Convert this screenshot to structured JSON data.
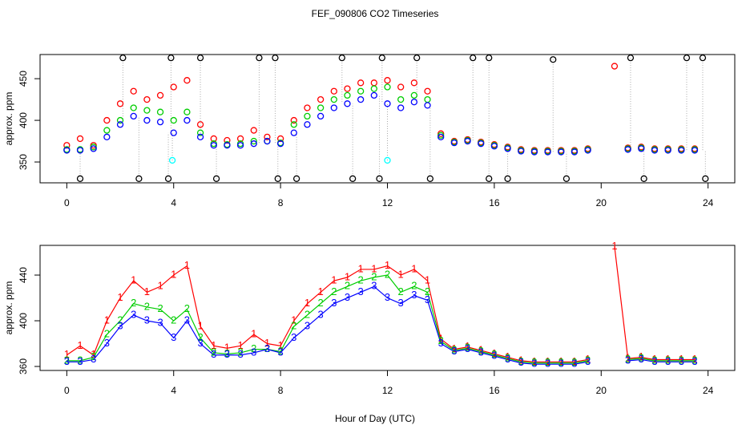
{
  "chart_data": [
    {
      "type": "scatter",
      "title": "FEF_090806  CO2 Timeseries",
      "ylabel": "approx. ppm",
      "x": [
        0,
        0.5,
        1,
        1.5,
        2,
        2.5,
        3,
        3.5,
        4,
        4.5,
        5,
        5.5,
        6,
        6.5,
        7,
        7.5,
        8,
        8.5,
        9,
        9.5,
        10,
        10.5,
        11,
        11.5,
        12,
        12.5,
        13,
        13.5,
        14,
        14.5,
        15,
        15.5,
        16,
        16.5,
        17,
        17.5,
        18,
        18.5,
        19,
        19.5,
        20,
        20.5,
        21,
        21.5,
        22,
        22.5,
        23,
        23.5
      ],
      "xlim": [
        -1,
        25
      ],
      "xticks": [
        0,
        4,
        8,
        12,
        16,
        20,
        24
      ],
      "ylim": [
        325,
        479
      ],
      "yticks": [
        350,
        400,
        450
      ],
      "series": [
        {
          "color": "#ff0000",
          "values": [
            370,
            378,
            370,
            400,
            420,
            435,
            425,
            430,
            440,
            448,
            395,
            378,
            376,
            378,
            388,
            380,
            378,
            400,
            415,
            425,
            435,
            438,
            445,
            445,
            448,
            440,
            445,
            435,
            384,
            375,
            377,
            374,
            371,
            368,
            365,
            364,
            364,
            364,
            364,
            366,
            null,
            465,
            367,
            368,
            366,
            366,
            366,
            366
          ]
        },
        {
          "color": "#00cd00",
          "values": [
            365,
            365,
            368,
            388,
            400,
            415,
            412,
            410,
            400,
            410,
            385,
            372,
            371,
            372,
            375,
            375,
            373,
            395,
            405,
            415,
            425,
            430,
            435,
            438,
            440,
            425,
            430,
            425,
            382,
            374,
            376,
            373,
            370,
            367,
            364,
            363,
            363,
            363,
            363,
            365,
            null,
            null,
            366,
            367,
            365,
            365,
            365,
            365
          ]
        },
        {
          "color": "#0000ff",
          "values": [
            364,
            364,
            366,
            380,
            395,
            405,
            400,
            398,
            385,
            400,
            380,
            370,
            370,
            370,
            372,
            375,
            372,
            385,
            395,
            405,
            415,
            420,
            425,
            430,
            420,
            415,
            422,
            418,
            380,
            373,
            375,
            372,
            369,
            366,
            363,
            362,
            362,
            362,
            362,
            364,
            null,
            null,
            365,
            366,
            364,
            364,
            364,
            364
          ]
        },
        {
          "color": "#000000",
          "x": [
            2.1,
            3.9,
            5,
            7.2,
            7.8,
            10.3,
            11.8,
            13.1,
            15.2,
            15.8,
            18.2,
            21.1,
            23.2,
            23.8,
            0.5,
            2.7,
            3.8,
            5.6,
            7.9,
            8.6,
            10.7,
            11.7,
            13.6,
            15.8,
            16.5,
            18.7,
            21.6,
            23.9
          ],
          "values": [
            475,
            475,
            475,
            475,
            475,
            475,
            475,
            475,
            475,
            475,
            473,
            475,
            475,
            475,
            330,
            330,
            330,
            330,
            330,
            330,
            330,
            330,
            330,
            330,
            330,
            330,
            330,
            330
          ]
        },
        {
          "color": "#00ffff",
          "x": [
            3.95,
            12
          ],
          "values": [
            352,
            352
          ]
        }
      ]
    },
    {
      "type": "line",
      "ylabel": "approx. ppm",
      "xlabel": "Hour of Day (UTC)",
      "x": [
        0,
        0.5,
        1,
        1.5,
        2,
        2.5,
        3,
        3.5,
        4,
        4.5,
        5,
        5.5,
        6,
        6.5,
        7,
        7.5,
        8,
        8.5,
        9,
        9.5,
        10,
        10.5,
        11,
        11.5,
        12,
        12.5,
        13,
        13.5,
        14,
        14.5,
        15,
        15.5,
        16,
        16.5,
        17,
        17.5,
        18,
        18.5,
        19,
        19.5,
        20,
        20.5,
        21,
        21.5,
        22,
        22.5,
        23,
        23.5
      ],
      "xlim": [
        -1,
        25
      ],
      "xticks": [
        0,
        4,
        8,
        12,
        16,
        20,
        24
      ],
      "ylim": [
        356.5,
        466
      ],
      "yticks": [
        360,
        400,
        440
      ],
      "series": [
        {
          "color": "#ff0000",
          "marker": "1",
          "values": [
            370,
            378,
            370,
            400,
            420,
            435,
            425,
            430,
            440,
            448,
            395,
            378,
            376,
            378,
            388,
            380,
            378,
            400,
            415,
            425,
            435,
            438,
            445,
            445,
            448,
            440,
            445,
            435,
            384,
            375,
            377,
            374,
            371,
            368,
            365,
            364,
            364,
            364,
            364,
            366,
            null,
            465,
            367,
            368,
            366,
            366,
            366,
            366
          ]
        },
        {
          "color": "#00cd00",
          "marker": "2",
          "values": [
            365,
            365,
            368,
            388,
            400,
            415,
            412,
            410,
            400,
            410,
            385,
            372,
            371,
            372,
            375,
            375,
            373,
            395,
            405,
            415,
            425,
            430,
            435,
            438,
            440,
            425,
            430,
            425,
            382,
            374,
            376,
            373,
            370,
            367,
            364,
            363,
            363,
            363,
            363,
            365,
            null,
            null,
            366,
            367,
            365,
            365,
            365,
            365
          ]
        },
        {
          "color": "#0000ff",
          "marker": "3",
          "values": [
            364,
            364,
            366,
            380,
            395,
            405,
            400,
            398,
            385,
            400,
            380,
            370,
            370,
            370,
            372,
            375,
            372,
            385,
            395,
            405,
            415,
            420,
            425,
            430,
            420,
            415,
            422,
            418,
            380,
            373,
            375,
            372,
            369,
            366,
            363,
            362,
            362,
            362,
            362,
            364,
            null,
            null,
            365,
            366,
            364,
            364,
            364,
            364
          ]
        }
      ]
    }
  ]
}
